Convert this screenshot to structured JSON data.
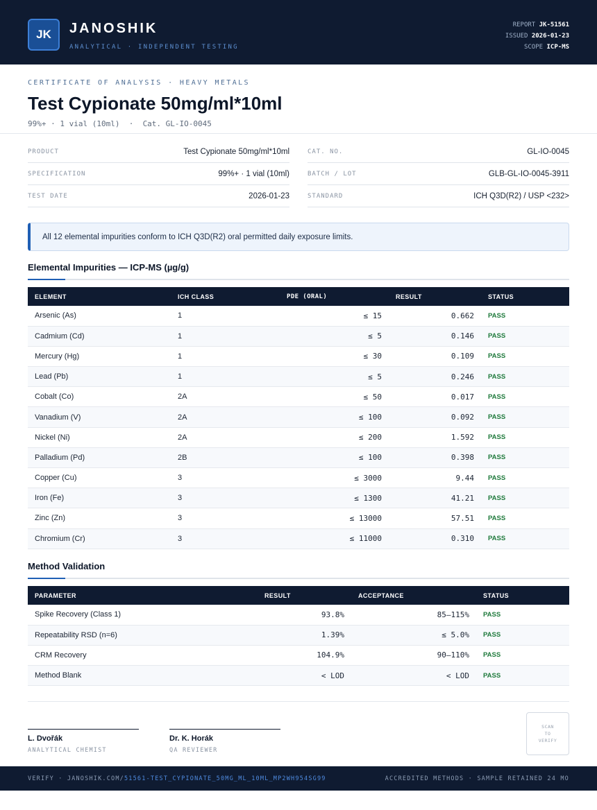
{
  "header": {
    "logo_initials": "JK",
    "brand": "JANOSHIK",
    "tagline": "ANALYTICAL · INDEPENDENT TESTING",
    "report_label": "REPORT",
    "report_value": "JK-51561",
    "issued_label": "ISSUED",
    "issued_value": "2026-01-23",
    "scope_label": "SCOPE",
    "scope_value": "ICP-MS"
  },
  "title_block": {
    "kicker": "CERTIFICATE OF ANALYSIS · HEAVY METALS",
    "title": "Test Cypionate 50mg/ml*10ml",
    "subtitle": "99%+ · 1 vial (10ml)  ·  Cat. GL-IO-0045"
  },
  "info_left": [
    {
      "key": "PRODUCT",
      "value": "Test Cypionate 50mg/ml*10ml"
    },
    {
      "key": "SPECIFICATION",
      "value": "99%+ · 1 vial (10ml)"
    },
    {
      "key": "TEST DATE",
      "value": "2026-01-23"
    }
  ],
  "info_right": [
    {
      "key": "CAT. NO.",
      "value": "GL-IO-0045"
    },
    {
      "key": "BATCH / LOT",
      "value": "GLB-GL-IO-0045-3911"
    },
    {
      "key": "STANDARD",
      "value": "ICH Q3D(R2) / USP <232>"
    }
  ],
  "banner": "All 12 elemental impurities conform to ICH Q3D(R2) oral permitted daily exposure limits.",
  "impurities": {
    "heading": "Elemental Impurities — ICP-MS (µg/g)",
    "columns": [
      "ELEMENT",
      "ICH CLASS",
      "PDE (ORAL)",
      "RESULT",
      "STATUS"
    ],
    "rows": [
      {
        "element": "Arsenic (As)",
        "class": "1",
        "pde": "≤ 15",
        "result": "0.662",
        "status": "PASS"
      },
      {
        "element": "Cadmium (Cd)",
        "class": "1",
        "pde": "≤ 5",
        "result": "0.146",
        "status": "PASS"
      },
      {
        "element": "Mercury (Hg)",
        "class": "1",
        "pde": "≤ 30",
        "result": "0.109",
        "status": "PASS"
      },
      {
        "element": "Lead (Pb)",
        "class": "1",
        "pde": "≤ 5",
        "result": "0.246",
        "status": "PASS"
      },
      {
        "element": "Cobalt (Co)",
        "class": "2A",
        "pde": "≤ 50",
        "result": "0.017",
        "status": "PASS"
      },
      {
        "element": "Vanadium (V)",
        "class": "2A",
        "pde": "≤ 100",
        "result": "0.092",
        "status": "PASS"
      },
      {
        "element": "Nickel (Ni)",
        "class": "2A",
        "pde": "≤ 200",
        "result": "1.592",
        "status": "PASS"
      },
      {
        "element": "Palladium (Pd)",
        "class": "2B",
        "pde": "≤ 100",
        "result": "0.398",
        "status": "PASS"
      },
      {
        "element": "Copper (Cu)",
        "class": "3",
        "pde": "≤ 3000",
        "result": "9.44",
        "status": "PASS"
      },
      {
        "element": "Iron (Fe)",
        "class": "3",
        "pde": "≤ 1300",
        "result": "41.21",
        "status": "PASS"
      },
      {
        "element": "Zinc (Zn)",
        "class": "3",
        "pde": "≤ 13000",
        "result": "57.51",
        "status": "PASS"
      },
      {
        "element": "Chromium (Cr)",
        "class": "3",
        "pde": "≤ 11000",
        "result": "0.310",
        "status": "PASS"
      }
    ]
  },
  "validation": {
    "heading": "Method Validation",
    "columns": [
      "PARAMETER",
      "RESULT",
      "ACCEPTANCE",
      "STATUS"
    ],
    "rows": [
      {
        "parameter": "Spike Recovery (Class 1)",
        "result": "93.8%",
        "acceptance": "85–115%",
        "status": "PASS"
      },
      {
        "parameter": "Repeatability RSD (n=6)",
        "result": "1.39%",
        "acceptance": "≤ 5.0%",
        "status": "PASS"
      },
      {
        "parameter": "CRM Recovery",
        "result": "104.9%",
        "acceptance": "90–110%",
        "status": "PASS"
      },
      {
        "parameter": "Method Blank",
        "result": "< LOD",
        "acceptance": "< LOD",
        "status": "PASS"
      }
    ]
  },
  "signatures": [
    {
      "name": "L. Dvořák",
      "role": "ANALYTICAL CHEMIST"
    },
    {
      "name": "Dr. K. Horák",
      "role": "QA REVIEWER"
    }
  ],
  "qr": {
    "line1": "SCAN",
    "line2": "TO",
    "line3": "VERIFY"
  },
  "footer": {
    "verify_prefix": "VERIFY · JANOSHIK.COM/",
    "verify_path": "51561-TEST_CYPIONATE_50MG_ML_10ML_MP2WH954SG99",
    "right": "ACCREDITED METHODS · SAMPLE RETAINED 24 MO"
  },
  "colors": {
    "navy": "#0f1b31",
    "accent": "#1f5fb5",
    "pass": "#1f7a3c"
  }
}
